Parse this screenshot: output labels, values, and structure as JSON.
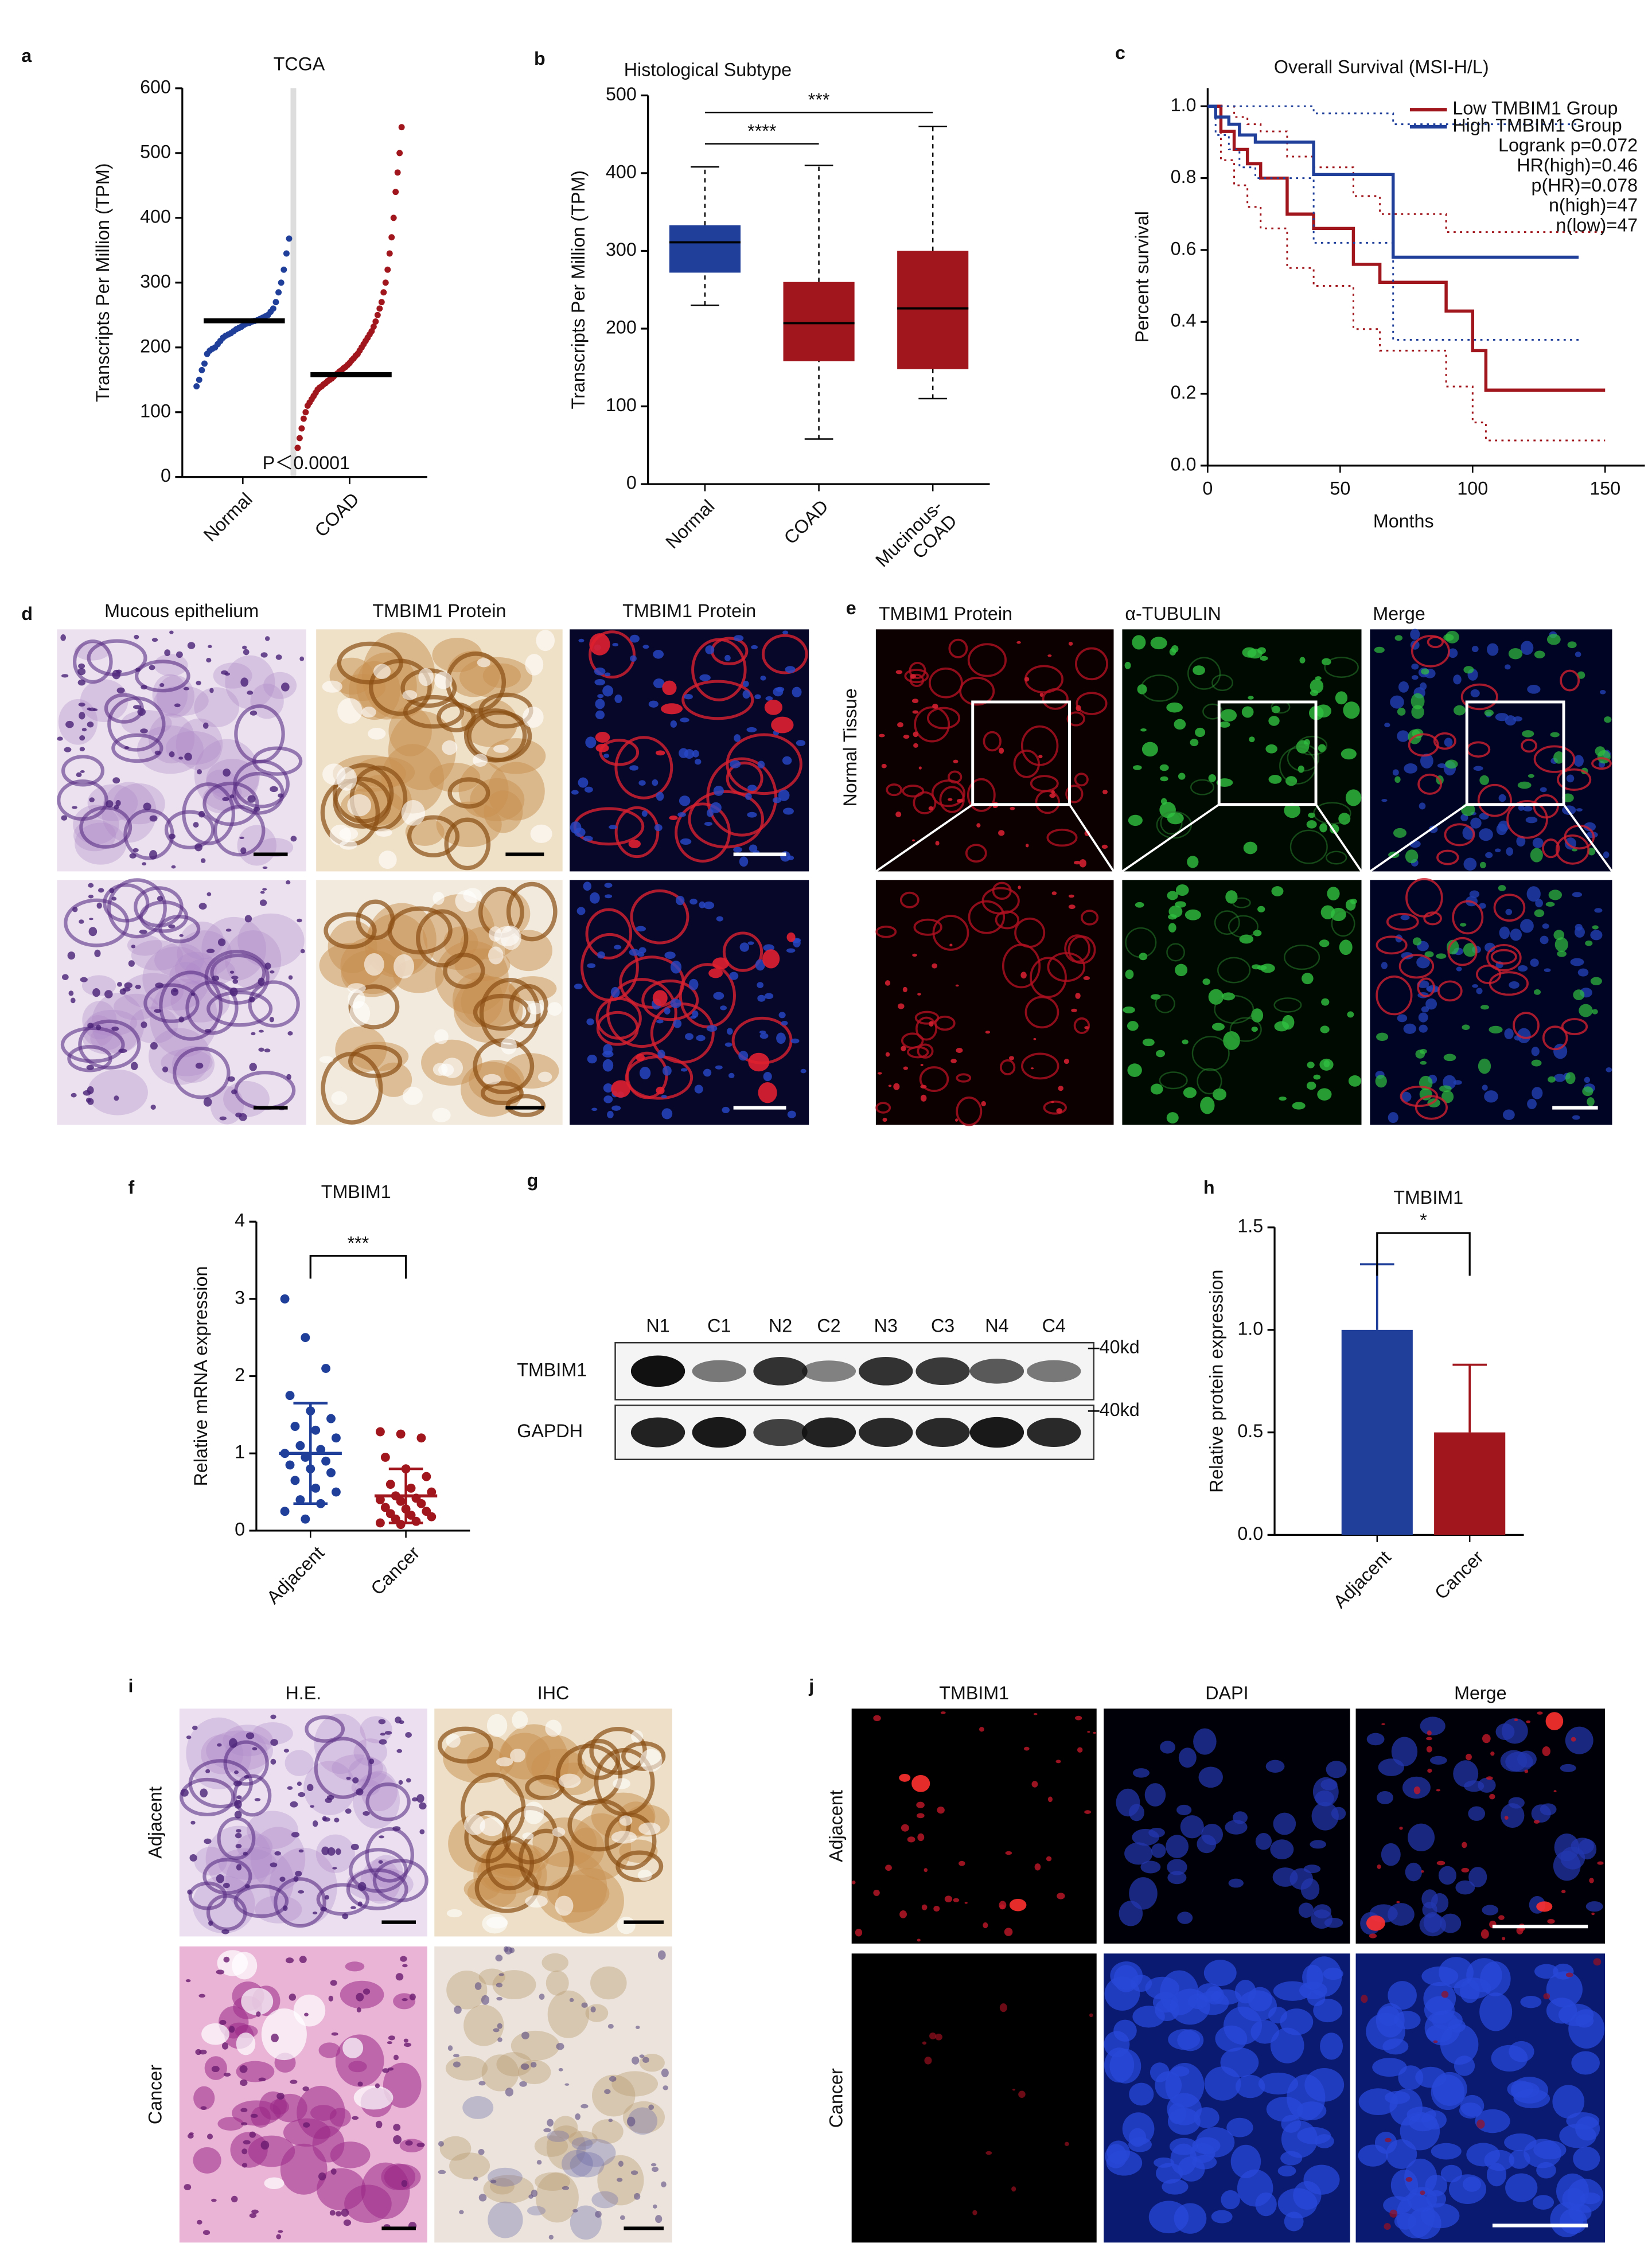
{
  "panel_labels": [
    "a",
    "b",
    "c",
    "d",
    "e",
    "f",
    "g",
    "h",
    "i",
    "j"
  ],
  "chart_data": [
    {
      "type": "strip",
      "title": "TCGA",
      "ylabel": "Transcripts Per Million (TPM)",
      "categories": [
        "Normal",
        "COAD"
      ],
      "ylim": [
        0,
        600
      ],
      "yticks": [
        0,
        100,
        200,
        300,
        400,
        500,
        600
      ],
      "annotation": "P＜0.0001",
      "groups": [
        {
          "color": "#1f3f9a",
          "mean": 241,
          "values": [
            140,
            150,
            165,
            175,
            190,
            195,
            198,
            200,
            205,
            210,
            215,
            218,
            220,
            222,
            225,
            228,
            230,
            232,
            235,
            237,
            238,
            240,
            241,
            242,
            244,
            246,
            248,
            250,
            255,
            260,
            270,
            285,
            300,
            320,
            345,
            368
          ]
        },
        {
          "color": "#a0161c",
          "mean": 158,
          "values": [
            45,
            60,
            75,
            90,
            100,
            110,
            115,
            120,
            125,
            130,
            135,
            138,
            140,
            143,
            145,
            148,
            150,
            152,
            155,
            158,
            160,
            163,
            165,
            168,
            170,
            173,
            176,
            180,
            183,
            187,
            190,
            195,
            200,
            205,
            210,
            215,
            220,
            225,
            232,
            240,
            250,
            260,
            270,
            285,
            300,
            320,
            345,
            370,
            400,
            440,
            470,
            500,
            540
          ]
        }
      ]
    },
    {
      "type": "box",
      "title": "Histological Subtype",
      "ylabel": "Transcripts Per Million (TPM)",
      "categories": [
        "Normal",
        "COAD",
        "Mucinous-\nCOAD"
      ],
      "colors": [
        "#1f3f9a",
        "#a0161c",
        "#a0161c"
      ],
      "ylim": [
        0,
        500
      ],
      "yticks": [
        0,
        100,
        200,
        300,
        400,
        500
      ],
      "annotations": [
        "****",
        "***"
      ],
      "min": [
        230,
        58,
        110
      ],
      "q1": [
        272,
        158,
        148
      ],
      "median": [
        311,
        207,
        226
      ],
      "q3": [
        333,
        260,
        300
      ],
      "max": [
        408,
        410,
        460
      ]
    },
    {
      "type": "survival",
      "title": "Overall Survival (MSI-H/L)",
      "xlabel": "Months",
      "ylabel": "Percent survival",
      "xlim": [
        0,
        165
      ],
      "xticks": [
        0,
        50,
        100,
        150
      ],
      "ylim": [
        0,
        1.05
      ],
      "yticks": [
        {
          "value": 0,
          "label": "0.0"
        },
        0.2,
        0.4,
        0.6,
        0.8,
        {
          "value": 1,
          "label": "1.0"
        }
      ],
      "stats": [
        "Logrank p=0.072",
        "HR(high)=0.46",
        "p(HR)=0.078",
        "n(high)=47",
        "n(low)=47"
      ],
      "series": [
        {
          "name": "Low TMBIM1 Group",
          "color": "#a0161c",
          "x": [
            0,
            5,
            10,
            15,
            20,
            30,
            40,
            55,
            65,
            75,
            90,
            100,
            105,
            150
          ],
          "values": [
            1,
            0.93,
            0.88,
            0.84,
            0.8,
            0.7,
            0.66,
            0.56,
            0.51,
            0.51,
            0.43,
            0.32,
            0.21,
            0.21
          ],
          "ci_upper": [
            1,
            1,
            0.97,
            0.95,
            0.93,
            0.86,
            0.83,
            0.75,
            0.7,
            0.7,
            0.65,
            0.65,
            0.65,
            0.65
          ],
          "ci_lower": [
            1,
            0.85,
            0.78,
            0.72,
            0.66,
            0.55,
            0.5,
            0.38,
            0.32,
            0.32,
            0.22,
            0.12,
            0.07,
            0.07
          ]
        },
        {
          "name": "High TMBIM1 Group",
          "color": "#1f3f9a",
          "x": [
            0,
            3,
            8,
            12,
            18,
            40,
            70,
            75,
            140
          ],
          "values": [
            1,
            0.97,
            0.95,
            0.92,
            0.9,
            0.81,
            0.58,
            0.58,
            0.58
          ],
          "ci_upper": [
            1,
            1,
            1,
            1,
            1,
            0.98,
            0.95,
            0.95,
            0.95
          ],
          "ci_lower": [
            1,
            0.92,
            0.88,
            0.83,
            0.8,
            0.62,
            0.35,
            0.35,
            0.35
          ]
        }
      ]
    },
    {
      "type": "dot",
      "title": "TMBIM1",
      "ylabel": "Relative mRNA expression",
      "categories": [
        "Adjacent",
        "Cancer"
      ],
      "ylim": [
        0,
        4
      ],
      "yticks": [
        0,
        1,
        2,
        3,
        4
      ],
      "annotation": "***",
      "groups": [
        {
          "color": "#1f3f9a",
          "mean": 1.0,
          "sd": 0.65,
          "values": [
            3.0,
            2.5,
            2.1,
            1.75,
            1.55,
            1.45,
            1.35,
            1.3,
            1.2,
            1.1,
            1.05,
            1.0,
            0.95,
            0.9,
            0.85,
            0.8,
            0.75,
            0.65,
            0.55,
            0.5,
            0.4,
            0.35,
            0.25,
            0.15
          ]
        },
        {
          "color": "#a0161c",
          "mean": 0.45,
          "sd": 0.35,
          "values": [
            1.28,
            1.25,
            1.2,
            0.95,
            0.8,
            0.7,
            0.6,
            0.55,
            0.5,
            0.45,
            0.42,
            0.4,
            0.38,
            0.35,
            0.3,
            0.28,
            0.25,
            0.22,
            0.2,
            0.18,
            0.15,
            0.12,
            0.1,
            0.08
          ]
        }
      ]
    },
    {
      "type": "bar",
      "title": "TMBIM1",
      "ylabel": "Relative protein expression",
      "categories": [
        "Adjacent",
        "Cancer"
      ],
      "colors": [
        "#1f3f9a",
        "#a0161c"
      ],
      "values": [
        1.0,
        0.5
      ],
      "errors": [
        0.32,
        0.33
      ],
      "ylim": [
        0,
        1.5
      ],
      "yticks": [
        {
          "value": 0,
          "label": "0.0"
        },
        0.5,
        {
          "value": 1,
          "label": "1.0"
        },
        1.5
      ],
      "annotation": "*"
    }
  ],
  "panel_d": {
    "headers": [
      "Mucous epithelium",
      "TMBIM1 Protein",
      "TMBIM1 Protein"
    ]
  },
  "panel_e": {
    "headers": [
      "TMBIM1 Protein",
      "α-TUBULIN",
      "Merge"
    ],
    "row_label": "Normal Tissue"
  },
  "western_blot": {
    "lanes": [
      "N1",
      "C1",
      "N2",
      "C2",
      "N3",
      "C3",
      "N4",
      "C4"
    ],
    "rows": [
      "TMBIM1",
      "GAPDH"
    ],
    "marker": "40kd"
  },
  "panel_i": {
    "headers": [
      "H.E.",
      "IHC"
    ],
    "rows": [
      "Adjacent",
      "Cancer"
    ]
  },
  "panel_j": {
    "headers": [
      "TMBIM1",
      "DAPI",
      "Merge"
    ],
    "rows": [
      "Adjacent",
      "Cancer"
    ]
  }
}
